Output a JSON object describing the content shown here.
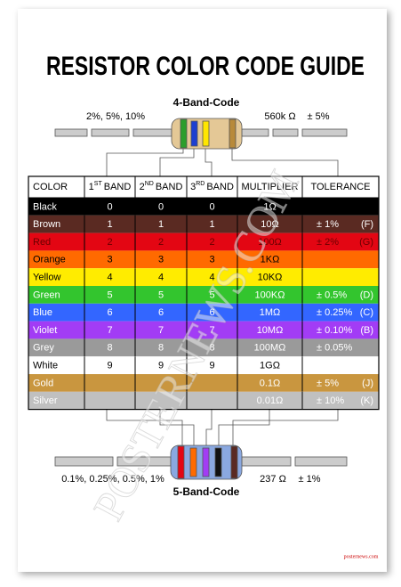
{
  "title": "RESISTOR COLOR CODE GUIDE",
  "four_band": {
    "label": "4-Band-Code",
    "left": "2%, 5%, 10%",
    "value": "560k Ω",
    "tolerance": "± 5%"
  },
  "five_band": {
    "label": "5-Band-Code",
    "left": "0.1%, 0.25%, 0.5%, 1%",
    "value": "237 Ω",
    "tolerance": "± 1%"
  },
  "table": {
    "headers": [
      {
        "text": "COLOR"
      },
      {
        "num": "1",
        "sup": "ST",
        "rest": "BAND"
      },
      {
        "num": "2",
        "sup": "ND",
        "rest": "BAND"
      },
      {
        "num": "3",
        "sup": "RD",
        "rest": "BAND"
      },
      {
        "text": "MULTIPLIER"
      },
      {
        "text": "TOLERANCE"
      }
    ],
    "rows": [
      {
        "name": "Black",
        "bands": [
          "0",
          "0",
          "0"
        ],
        "multiplier": "1Ω",
        "tolerance": null,
        "code": null,
        "bg": "#000000",
        "fg": "#ffffff"
      },
      {
        "name": "Brown",
        "bands": [
          "1",
          "1",
          "1"
        ],
        "multiplier": "10Ω",
        "tolerance": "± 1%",
        "code": "(F)",
        "bg": "#5a2a22",
        "fg": "#ffffff"
      },
      {
        "name": "Red",
        "bands": [
          "2",
          "2",
          "2"
        ],
        "multiplier": "100Ω",
        "tolerance": "± 2%",
        "code": "(G)",
        "bg": "#e30613",
        "fg": "#6a0000"
      },
      {
        "name": "Orange",
        "bands": [
          "3",
          "3",
          "3"
        ],
        "multiplier": "1KΩ",
        "tolerance": null,
        "code": null,
        "bg": "#ff6a00",
        "fg": "#000000"
      },
      {
        "name": "Yellow",
        "bands": [
          "4",
          "4",
          "4"
        ],
        "multiplier": "10KΩ",
        "tolerance": null,
        "code": null,
        "bg": "#ffec00",
        "fg": "#000000"
      },
      {
        "name": "Green",
        "bands": [
          "5",
          "5",
          "5"
        ],
        "multiplier": "100KΩ",
        "tolerance": "± 0.5%",
        "code": "(D)",
        "bg": "#33c52e",
        "fg": "#ffffff"
      },
      {
        "name": "Blue",
        "bands": [
          "6",
          "6",
          "6"
        ],
        "multiplier": "1MΩ",
        "tolerance": "± 0.25%",
        "code": "(C)",
        "bg": "#3366ff",
        "fg": "#ffffff"
      },
      {
        "name": "Violet",
        "bands": [
          "7",
          "7",
          "7"
        ],
        "multiplier": "10MΩ",
        "tolerance": "± 0.10%",
        "code": "(B)",
        "bg": "#a23cf5",
        "fg": "#ffffff"
      },
      {
        "name": "Grey",
        "bands": [
          "8",
          "8",
          "8"
        ],
        "multiplier": "100MΩ",
        "tolerance": "± 0.05%",
        "code": null,
        "bg": "#9a9a9a",
        "fg": "#ffffff"
      },
      {
        "name": "White",
        "bands": [
          "9",
          "9",
          "9"
        ],
        "multiplier": "1GΩ",
        "tolerance": null,
        "code": null,
        "bg": "#ffffff",
        "fg": "#000000"
      },
      {
        "name": "Gold",
        "bands": [
          null,
          null,
          null
        ],
        "multiplier": "0.1Ω",
        "tolerance": "± 5%",
        "code": "(J)",
        "bg": "#c9963f",
        "fg": "#ffffff"
      },
      {
        "name": "Silver",
        "bands": [
          null,
          null,
          null
        ],
        "multiplier": "0.01Ω",
        "tolerance": "± 10%",
        "code": "(K)",
        "bg": "#c0c0c0",
        "fg": "#ffffff"
      }
    ]
  },
  "watermark": "POSTERNEWS.COM",
  "footer": "posternews.com"
}
